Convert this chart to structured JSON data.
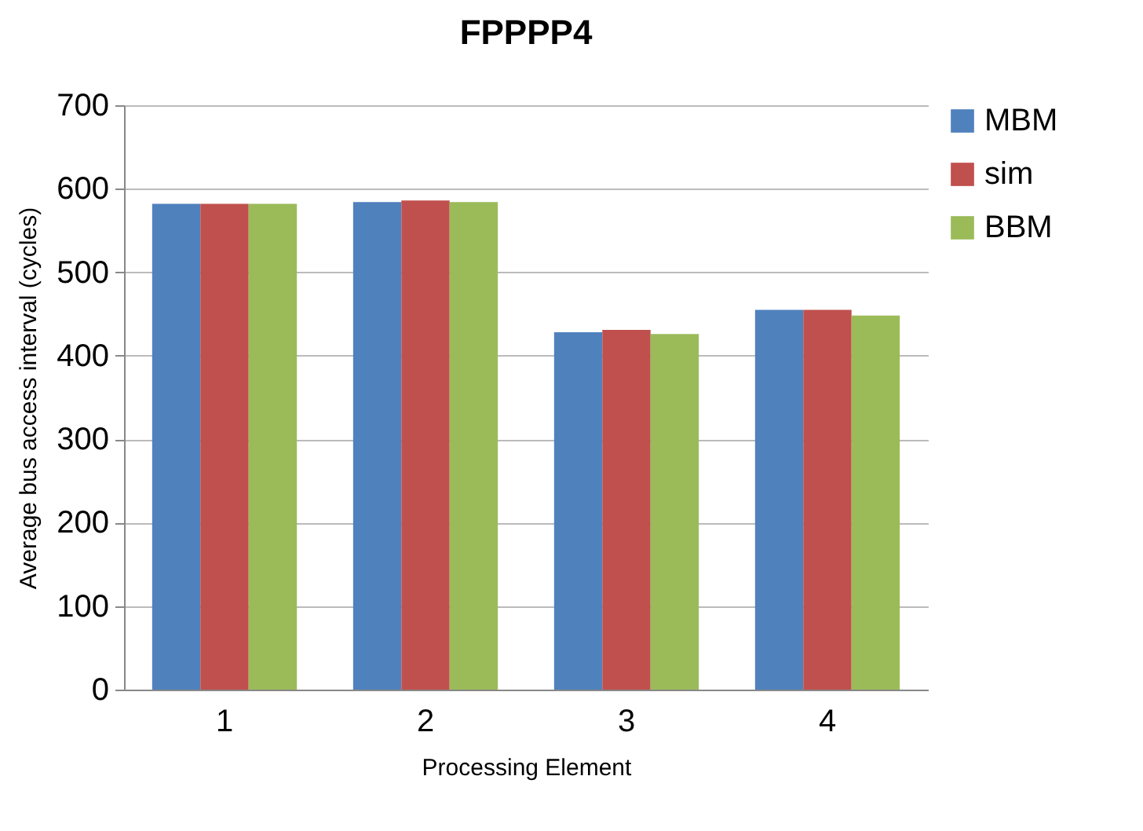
{
  "chart_data": {
    "type": "bar",
    "title": "FPPPP4",
    "xlabel": "Processing Element",
    "ylabel": "Average bus access interval (cycles)",
    "categories": [
      "1",
      "2",
      "3",
      "4"
    ],
    "series": [
      {
        "name": "MBM",
        "color": "#4f81bd",
        "values": [
          582,
          584,
          428,
          455
        ]
      },
      {
        "name": "sim",
        "color": "#c0504d",
        "values": [
          582,
          586,
          431,
          455
        ]
      },
      {
        "name": "BBM",
        "color": "#9bbb59",
        "values": [
          582,
          584,
          426,
          448
        ]
      }
    ],
    "ylim": [
      0,
      700
    ],
    "yticks": [
      0,
      100,
      200,
      300,
      400,
      500,
      600,
      700
    ],
    "grid": "y",
    "legend": "right"
  }
}
